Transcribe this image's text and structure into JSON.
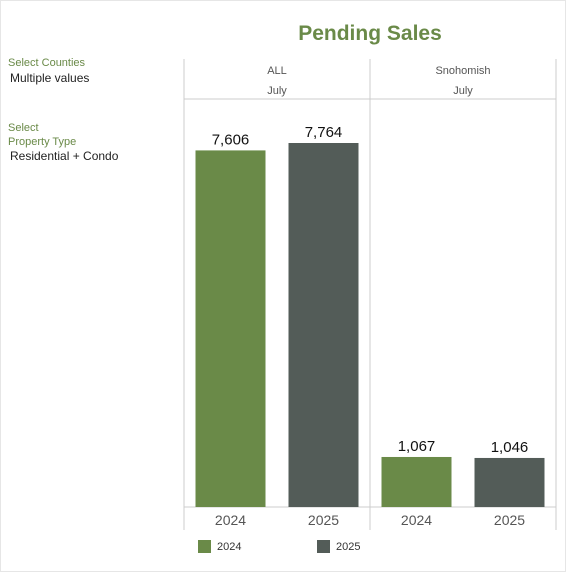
{
  "title": "Pending Sales",
  "filters": {
    "counties_label": "Select Counties",
    "counties_value": "Multiple values",
    "property_label_line1": "Select",
    "property_label_line2": "Property Type",
    "property_value": "Residential + Condo"
  },
  "colors": {
    "series_2024": "#6a8a48",
    "series_2025": "#535c58",
    "title": "#6a8a48",
    "grid": "#cccccc"
  },
  "legend": [
    {
      "label": "2024",
      "color": "#6a8a48"
    },
    {
      "label": "2025",
      "color": "#535c58"
    }
  ],
  "chart_data": {
    "type": "bar",
    "title": "Pending Sales",
    "panels": [
      {
        "region": "ALL",
        "month": "July",
        "categories": [
          "2024",
          "2025"
        ],
        "values": [
          7606,
          7764
        ],
        "labels": [
          "7,606",
          "7,764"
        ]
      },
      {
        "region": "Snohomish",
        "month": "July",
        "categories": [
          "2024",
          "2025"
        ],
        "values": [
          1067,
          1046
        ],
        "labels": [
          "1,067",
          "1,046"
        ]
      }
    ],
    "series": [
      {
        "name": "2024",
        "color": "#6a8a48"
      },
      {
        "name": "2025",
        "color": "#535c58"
      }
    ],
    "ylim": [
      0,
      8000
    ],
    "grid": false,
    "legend_position": "bottom"
  }
}
